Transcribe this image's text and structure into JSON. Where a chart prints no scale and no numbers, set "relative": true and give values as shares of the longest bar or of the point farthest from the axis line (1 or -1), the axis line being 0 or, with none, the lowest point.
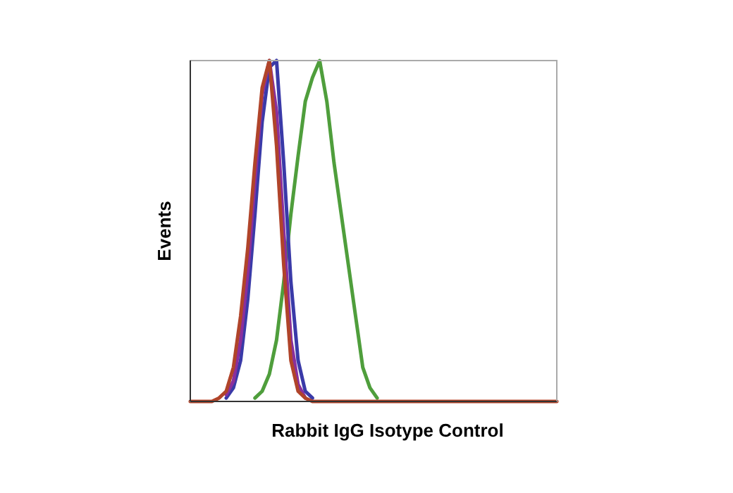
{
  "chart_data": {
    "type": "line",
    "relative": true,
    "xlabel": "Rabbit IgG Isotype Control",
    "ylabel": "Events",
    "categories": [
      null,
      null,
      null,
      null,
      null,
      null,
      null,
      null,
      null,
      null,
      null,
      null,
      null,
      null,
      null,
      null,
      null,
      null,
      null,
      null,
      null,
      null,
      null,
      null,
      null,
      null,
      null,
      null,
      null,
      null,
      null,
      null,
      null,
      null,
      null,
      null,
      null,
      null,
      null,
      null,
      null,
      null,
      null,
      null,
      null,
      null,
      null,
      null,
      null,
      null,
      null,
      null
    ],
    "series": [
      {
        "color": "#4f9e3c",
        "values": [
          null,
          null,
          null,
          null,
          null,
          null,
          null,
          null,
          null,
          0.01,
          0.03,
          0.08,
          0.18,
          0.35,
          0.55,
          0.72,
          0.88,
          0.95,
          1,
          0.88,
          0.7,
          0.55,
          0.4,
          0.25,
          0.1,
          0.04,
          0.01,
          null,
          null,
          null,
          null,
          null,
          null,
          null,
          null,
          null,
          null,
          null,
          null,
          null,
          null,
          null,
          null,
          null,
          null,
          null,
          null,
          null,
          null,
          null,
          null,
          null
        ]
      },
      {
        "color": "#3a3aa8",
        "values": [
          null,
          null,
          null,
          null,
          null,
          0.01,
          0.04,
          0.12,
          0.3,
          0.55,
          0.82,
          0.98,
          1,
          0.7,
          0.35,
          0.12,
          0.03,
          0.01,
          null,
          null,
          null,
          null,
          null,
          null,
          null,
          null,
          null,
          null,
          null,
          null,
          null,
          null,
          null,
          null,
          null,
          null,
          null,
          null,
          null,
          null,
          null,
          null,
          null,
          null,
          null,
          null,
          null,
          null,
          null,
          null,
          null,
          null
        ]
      },
      {
        "color": "#8a2f9c",
        "values": [
          null,
          null,
          null,
          null,
          null,
          0.02,
          0.06,
          0.18,
          0.38,
          0.65,
          0.9,
          1,
          0.85,
          0.5,
          0.18,
          0.05,
          0.01,
          null,
          null,
          null,
          null,
          null,
          null,
          null,
          null,
          null,
          null,
          null,
          null,
          null,
          null,
          null,
          null,
          null,
          null,
          null,
          null,
          null,
          null,
          null,
          null,
          null,
          null,
          null,
          null,
          null,
          null,
          null,
          null,
          null,
          null,
          null
        ]
      },
      {
        "color": "#b0442a",
        "values": [
          0,
          0,
          0,
          0,
          0.01,
          0.03,
          0.1,
          0.25,
          0.45,
          0.7,
          0.92,
          1,
          0.75,
          0.4,
          0.12,
          0.03,
          0.01,
          0,
          0,
          0,
          0,
          0,
          0,
          0,
          0,
          0,
          0,
          0,
          0,
          0,
          0,
          0,
          0,
          0,
          0,
          0,
          0,
          0,
          0,
          0,
          0,
          0,
          0,
          0,
          0,
          0,
          0,
          0,
          0,
          0,
          0,
          0
        ]
      }
    ]
  }
}
